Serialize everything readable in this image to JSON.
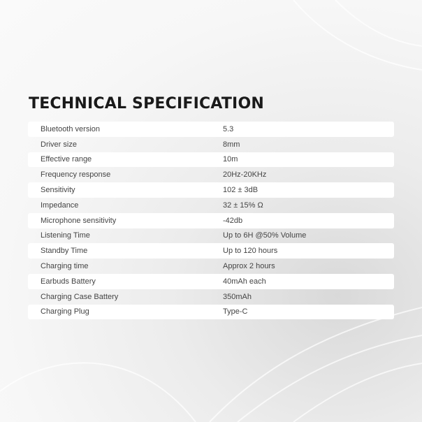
{
  "title": "TECHNICAL SPECIFICATION",
  "specs": [
    {
      "label": "Bluetooth version",
      "value": "5.3"
    },
    {
      "label": "Driver size",
      "value": "8mm"
    },
    {
      "label": "Effective range",
      "value": "10m"
    },
    {
      "label": "Frequency response",
      "value": "20Hz-20KHz"
    },
    {
      "label": "Sensitivity",
      "value": "102 ± 3dB"
    },
    {
      "label": "Impedance",
      "value": "32 ± 15% Ω"
    },
    {
      "label": "Microphone sensitivity",
      "value": "-42db"
    },
    {
      "label": "Listening Time",
      "value": "Up to 6H @50% Volume"
    },
    {
      "label": "Standby Time",
      "value": "Up to 120 hours"
    },
    {
      "label": "Charging time",
      "value": "Approx 2 hours"
    },
    {
      "label": "Earbuds Battery",
      "value": "40mAh each"
    },
    {
      "label": "Charging Case Battery",
      "value": "350mAh"
    },
    {
      "label": "Charging Plug",
      "value": "Type-C"
    }
  ]
}
